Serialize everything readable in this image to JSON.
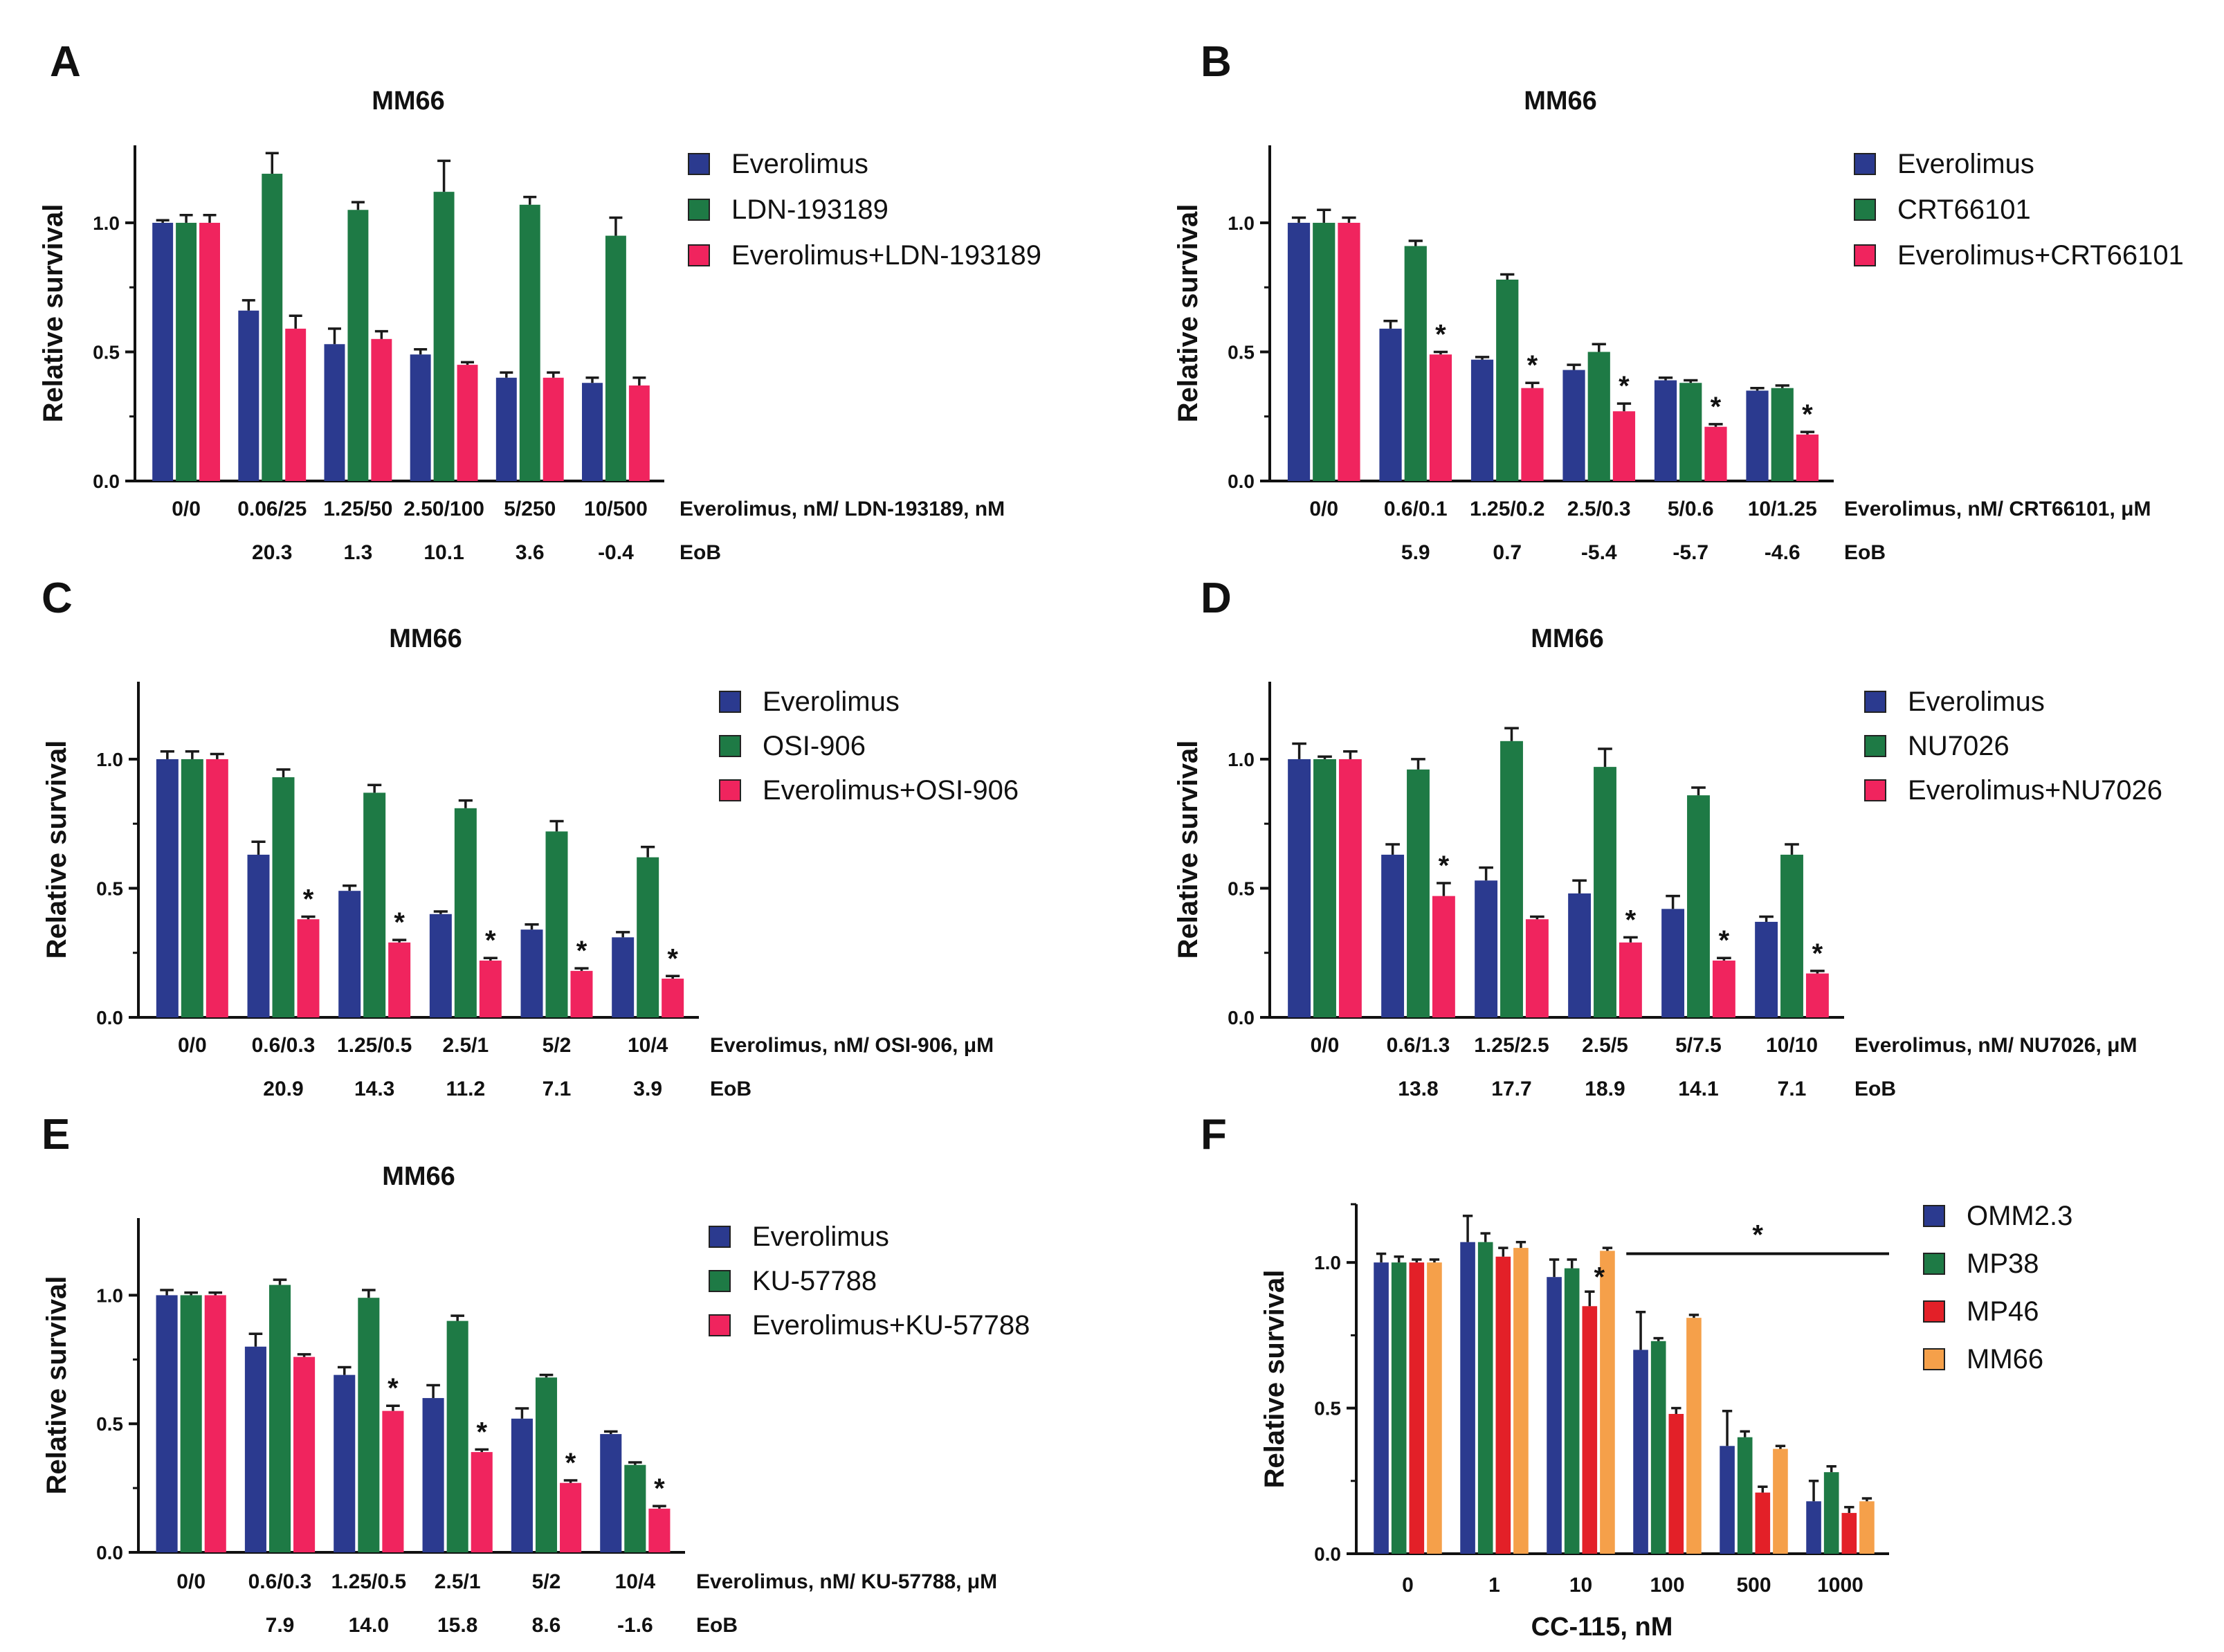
{
  "colors": {
    "everolimus": "#2b3a8f",
    "drug": "#1e7a45",
    "combo": "#f0245e",
    "omm": "#2b3a8f",
    "mp38": "#1e7a45",
    "mp46": "#e32028",
    "mm66": "#f5a04a",
    "error": "#1a1a1a"
  },
  "chart_data": [
    {
      "panel": "A",
      "type": "bar",
      "title": "MM66",
      "ylabel": "Relative survival",
      "ylim": [
        0,
        1.3
      ],
      "yticks": [
        "0.0",
        "0.5",
        "1.0"
      ],
      "categories": [
        "0/0",
        "0.06/25",
        "1.25/50",
        "2.50/100",
        "5/250",
        "10/500"
      ],
      "xdesc": "Everolimus, nM/ LDN-193189, nM",
      "eob_label": "EoB",
      "eob": [
        "",
        "20.3",
        "1.3",
        "10.1",
        "3.6",
        "-0.4"
      ],
      "series": [
        {
          "name": "Everolimus",
          "color_key": "everolimus",
          "values": [
            1.0,
            0.66,
            0.53,
            0.49,
            0.4,
            0.38
          ],
          "errors": [
            0.01,
            0.04,
            0.06,
            0.02,
            0.02,
            0.02
          ]
        },
        {
          "name": "LDN-193189",
          "color_key": "drug",
          "values": [
            1.0,
            1.19,
            1.05,
            1.12,
            1.07,
            0.95
          ],
          "errors": [
            0.03,
            0.08,
            0.03,
            0.12,
            0.03,
            0.07
          ]
        },
        {
          "name": "Everolimus+LDN-193189",
          "color_key": "combo",
          "values": [
            1.0,
            0.59,
            0.55,
            0.45,
            0.4,
            0.37
          ],
          "errors": [
            0.03,
            0.05,
            0.03,
            0.01,
            0.02,
            0.03
          ]
        }
      ],
      "stars": [
        false,
        false,
        false,
        false,
        false,
        false
      ]
    },
    {
      "panel": "B",
      "type": "bar",
      "title": "MM66",
      "ylabel": "Relative survival",
      "ylim": [
        0,
        1.3
      ],
      "yticks": [
        "0.0",
        "0.5",
        "1.0"
      ],
      "categories": [
        "0/0",
        "0.6/0.1",
        "1.25/0.2",
        "2.5/0.3",
        "5/0.6",
        "10/1.25"
      ],
      "xdesc": "Everolimus, nM/ CRT66101, μM",
      "eob_label": "EoB",
      "eob": [
        "",
        "5.9",
        "0.7",
        "-5.4",
        "-5.7",
        "-4.6"
      ],
      "series": [
        {
          "name": "Everolimus",
          "color_key": "everolimus",
          "values": [
            1.0,
            0.59,
            0.47,
            0.43,
            0.39,
            0.35
          ],
          "errors": [
            0.02,
            0.03,
            0.01,
            0.02,
            0.01,
            0.01
          ]
        },
        {
          "name": "CRT66101",
          "color_key": "drug",
          "values": [
            1.0,
            0.91,
            0.78,
            0.5,
            0.38,
            0.36
          ],
          "errors": [
            0.05,
            0.02,
            0.02,
            0.03,
            0.01,
            0.01
          ]
        },
        {
          "name": "Everolimus+CRT66101",
          "color_key": "combo",
          "values": [
            1.0,
            0.49,
            0.36,
            0.27,
            0.21,
            0.18
          ],
          "errors": [
            0.02,
            0.01,
            0.02,
            0.03,
            0.01,
            0.01
          ]
        }
      ],
      "stars": [
        false,
        true,
        true,
        true,
        true,
        true
      ]
    },
    {
      "panel": "C",
      "type": "bar",
      "title": "MM66",
      "ylabel": "Relative survival",
      "ylim": [
        0,
        1.3
      ],
      "yticks": [
        "0.0",
        "0.5",
        "1.0"
      ],
      "categories": [
        "0/0",
        "0.6/0.3",
        "1.25/0.5",
        "2.5/1",
        "5/2",
        "10/4"
      ],
      "xdesc": "Everolimus, nM/ OSI-906, μM",
      "eob_label": "EoB",
      "eob": [
        "",
        "20.9",
        "14.3",
        "11.2",
        "7.1",
        "3.9"
      ],
      "series": [
        {
          "name": "Everolimus",
          "color_key": "everolimus",
          "values": [
            1.0,
            0.63,
            0.49,
            0.4,
            0.34,
            0.31
          ],
          "errors": [
            0.03,
            0.05,
            0.02,
            0.01,
            0.02,
            0.02
          ]
        },
        {
          "name": "OSI-906",
          "color_key": "drug",
          "values": [
            1.0,
            0.93,
            0.87,
            0.81,
            0.72,
            0.62
          ],
          "errors": [
            0.03,
            0.03,
            0.03,
            0.03,
            0.04,
            0.04
          ]
        },
        {
          "name": "Everolimus+OSI-906",
          "color_key": "combo",
          "values": [
            1.0,
            0.38,
            0.29,
            0.22,
            0.18,
            0.15
          ],
          "errors": [
            0.02,
            0.01,
            0.01,
            0.01,
            0.01,
            0.01
          ]
        }
      ],
      "stars": [
        false,
        true,
        true,
        true,
        true,
        true
      ]
    },
    {
      "panel": "D",
      "type": "bar",
      "title": "MM66",
      "ylabel": "Relative survival",
      "ylim": [
        0,
        1.3
      ],
      "yticks": [
        "0.0",
        "0.5",
        "1.0"
      ],
      "categories": [
        "0/0",
        "0.6/1.3",
        "1.25/2.5",
        "2.5/5",
        "5/7.5",
        "10/10"
      ],
      "xdesc": "Everolimus, nM/ NU7026, μM",
      "eob_label": "EoB",
      "eob": [
        "",
        "13.8",
        "17.7",
        "18.9",
        "14.1",
        "7.1"
      ],
      "series": [
        {
          "name": "Everolimus",
          "color_key": "everolimus",
          "values": [
            1.0,
            0.63,
            0.53,
            0.48,
            0.42,
            0.37
          ],
          "errors": [
            0.06,
            0.04,
            0.05,
            0.05,
            0.05,
            0.02
          ]
        },
        {
          "name": "NU7026",
          "color_key": "drug",
          "values": [
            1.0,
            0.96,
            1.07,
            0.97,
            0.86,
            0.63
          ],
          "errors": [
            0.01,
            0.04,
            0.05,
            0.07,
            0.03,
            0.04
          ]
        },
        {
          "name": "Everolimus+NU7026",
          "color_key": "combo",
          "values": [
            1.0,
            0.47,
            0.38,
            0.29,
            0.22,
            0.17
          ],
          "errors": [
            0.03,
            0.05,
            0.01,
            0.02,
            0.01,
            0.01
          ]
        }
      ],
      "stars": [
        false,
        true,
        false,
        true,
        true,
        true
      ]
    },
    {
      "panel": "E",
      "type": "bar",
      "title": "MM66",
      "ylabel": "Relative survival",
      "ylim": [
        0,
        1.3
      ],
      "yticks": [
        "0.0",
        "0.5",
        "1.0"
      ],
      "categories": [
        "0/0",
        "0.6/0.3",
        "1.25/0.5",
        "2.5/1",
        "5/2",
        "10/4"
      ],
      "xdesc": "Everolimus, nM/ KU-57788, μM",
      "eob_label": "EoB",
      "eob": [
        "",
        "7.9",
        "14.0",
        "15.8",
        "8.6",
        "-1.6"
      ],
      "series": [
        {
          "name": "Everolimus",
          "color_key": "everolimus",
          "values": [
            1.0,
            0.8,
            0.69,
            0.6,
            0.52,
            0.46
          ],
          "errors": [
            0.02,
            0.05,
            0.03,
            0.05,
            0.04,
            0.01
          ]
        },
        {
          "name": "KU-57788",
          "color_key": "drug",
          "values": [
            1.0,
            1.04,
            0.99,
            0.9,
            0.68,
            0.34
          ],
          "errors": [
            0.01,
            0.02,
            0.03,
            0.02,
            0.01,
            0.01
          ]
        },
        {
          "name": "Everolimus+KU-57788",
          "color_key": "combo",
          "values": [
            1.0,
            0.76,
            0.55,
            0.39,
            0.27,
            0.17
          ],
          "errors": [
            0.01,
            0.01,
            0.02,
            0.01,
            0.01,
            0.01
          ]
        }
      ],
      "stars": [
        false,
        false,
        true,
        true,
        true,
        true
      ]
    },
    {
      "panel": "F",
      "type": "bar",
      "title": "",
      "ylabel": "Relative survival",
      "ylim": [
        0,
        1.2
      ],
      "yticks": [
        "0.0",
        "0.5",
        "1.0"
      ],
      "categories": [
        "0",
        "1",
        "10",
        "100",
        "500",
        "1000"
      ],
      "xlabel": "CC-115, nM",
      "series": [
        {
          "name": "OMM2.3",
          "color_key": "omm",
          "values": [
            1.0,
            1.07,
            0.95,
            0.7,
            0.37,
            0.18
          ],
          "errors": [
            0.03,
            0.09,
            0.06,
            0.13,
            0.12,
            0.07
          ]
        },
        {
          "name": "MP38",
          "color_key": "mp38",
          "values": [
            1.0,
            1.07,
            0.98,
            0.73,
            0.4,
            0.28
          ],
          "errors": [
            0.02,
            0.03,
            0.03,
            0.01,
            0.02,
            0.02
          ]
        },
        {
          "name": "MP46",
          "color_key": "mp46",
          "values": [
            1.0,
            1.02,
            0.85,
            0.48,
            0.21,
            0.14
          ],
          "errors": [
            0.01,
            0.03,
            0.05,
            0.02,
            0.02,
            0.02
          ]
        },
        {
          "name": "MM66",
          "color_key": "mm66",
          "values": [
            1.0,
            1.05,
            1.04,
            0.81,
            0.36,
            0.18
          ],
          "errors": [
            0.01,
            0.02,
            0.01,
            0.01,
            0.01,
            0.01
          ]
        }
      ],
      "star_label": "*",
      "stars": [
        false,
        false,
        true,
        false,
        false,
        false
      ],
      "bracket": {
        "from_category": 3,
        "to_category": 5,
        "value": 1.03
      }
    }
  ]
}
